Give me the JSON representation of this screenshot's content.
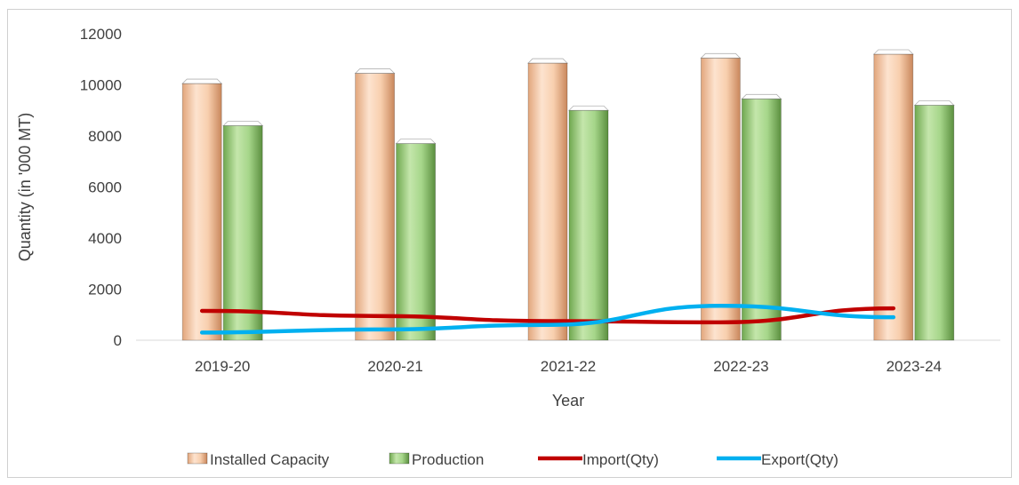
{
  "chart_data": {
    "type": "bar",
    "categories": [
      "2019-20",
      "2020-21",
      "2021-22",
      "2022-23",
      "2023-24"
    ],
    "series": [
      {
        "name": "Installed Capacity",
        "kind": "bar",
        "color": "#f7caa6",
        "values": [
          10050,
          10450,
          10850,
          11050,
          11200
        ]
      },
      {
        "name": "Production",
        "kind": "bar",
        "color": "#9fd184",
        "values": [
          8400,
          7700,
          9000,
          9450,
          9200
        ]
      },
      {
        "name": "Import(Qty)",
        "kind": "line",
        "color": "#c00000",
        "values": [
          1150,
          950,
          750,
          700,
          1250
        ]
      },
      {
        "name": "Export(Qty)",
        "kind": "line",
        "color": "#00b0f0",
        "values": [
          300,
          420,
          600,
          1350,
          900
        ]
      }
    ],
    "title": "",
    "xlabel": "Year",
    "ylabel": "Quantity (in '000 MT)",
    "ylim": [
      0,
      12000
    ],
    "yticks": [
      0,
      2000,
      4000,
      6000,
      8000,
      10000,
      12000
    ],
    "grid": false,
    "legend_position": "bottom"
  }
}
